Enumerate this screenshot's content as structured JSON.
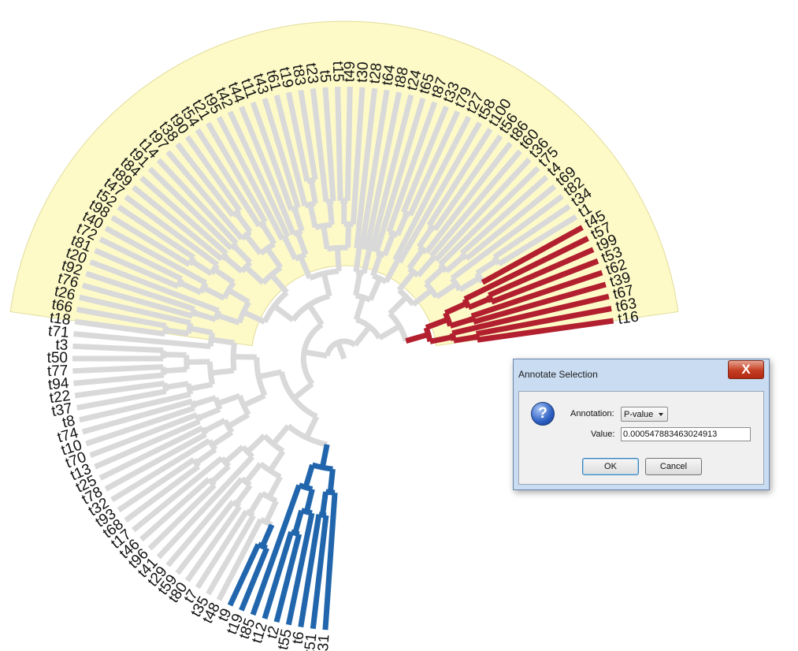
{
  "tree": {
    "highlight_fill": "#fdfac8",
    "branch_color": "#d9d9d9",
    "clade_colors": {
      "dark_red": "#b21f2e",
      "salmon": "#f0956a",
      "purple": "#7a2450",
      "dark_blue": "#2166ac",
      "light_blue": "#6baed6"
    },
    "tips": [
      "t16",
      "t63",
      "t67",
      "t39",
      "t62",
      "t53",
      "t99",
      "t57",
      "t45",
      "t1",
      "t34",
      "t82",
      "t69",
      "t4",
      "t75",
      "t36",
      "t60",
      "t86",
      "t56",
      "t100",
      "t58",
      "t27",
      "t79",
      "t33",
      "t87",
      "t65",
      "t24",
      "t88",
      "t64",
      "t28",
      "t30",
      "t49",
      "t15",
      "t5",
      "t23",
      "t83",
      "t19",
      "t61",
      "t43",
      "t11",
      "t44",
      "t42",
      "t95",
      "t21",
      "t54",
      "t90",
      "t38",
      "t97",
      "t14",
      "t91",
      "t84",
      "t89",
      "t47",
      "t52",
      "t98",
      "t40",
      "t72",
      "t81",
      "t20",
      "t92",
      "t76",
      "t26",
      "t66",
      "t18",
      "t71",
      "t3",
      "t50",
      "t77",
      "t94",
      "t22",
      "t37",
      "t8",
      "t74",
      "t10",
      "t70",
      "t13",
      "t25",
      "t78",
      "t32",
      "t93",
      "t68",
      "t17",
      "t46",
      "t96",
      "t41",
      "t29",
      "t59",
      "t80",
      "t7",
      "t35",
      "t48",
      "t9",
      "t19",
      "t85",
      "t12",
      "t2",
      "t55",
      "t6",
      "t51",
      "t31"
    ]
  },
  "dialog": {
    "title": "Annotate Selection",
    "close_glyph": "X",
    "icon": "question-icon",
    "annotation_label": "Annotation:",
    "annotation_value": "P-value",
    "value_label": "Value:",
    "value": "0.0005478834630249 13",
    "ok_label": "OK",
    "cancel_label": "Cancel"
  }
}
